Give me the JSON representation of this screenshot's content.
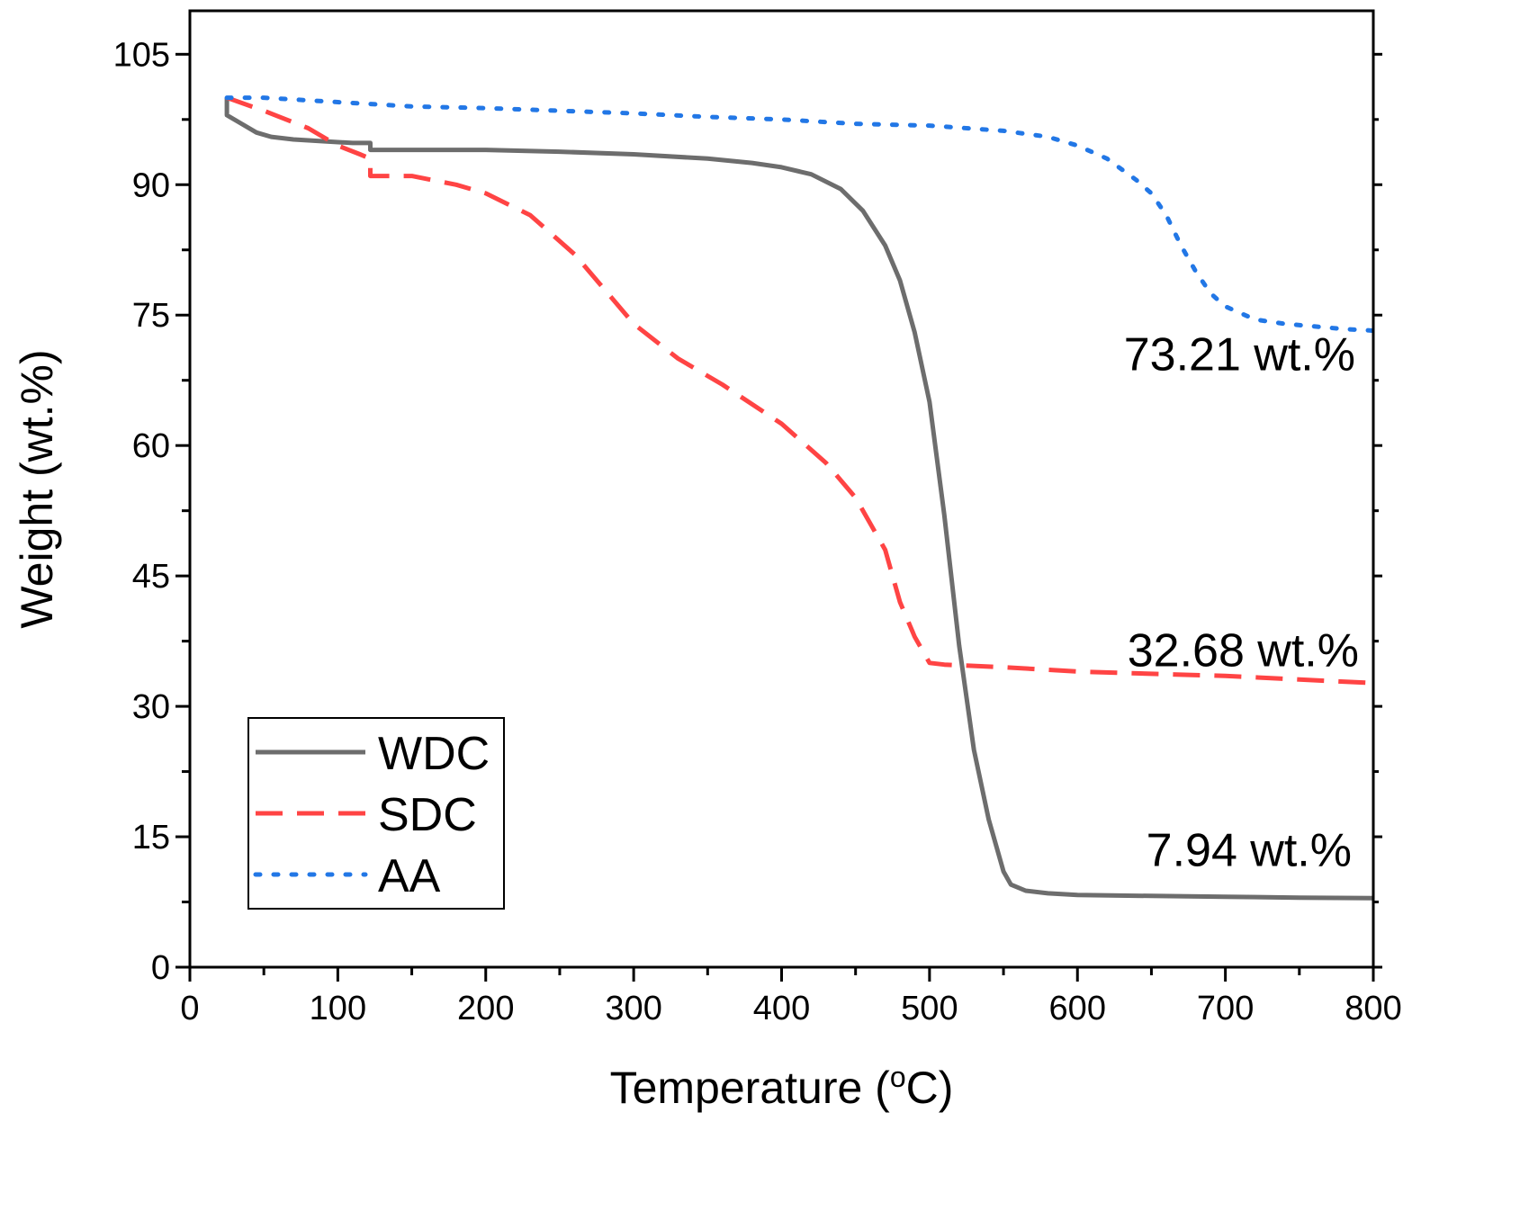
{
  "chart_data": {
    "type": "line",
    "title": "",
    "xlabel": "Temperature (",
    "xlabel_sup": "o",
    "xlabel_tail": "C)",
    "ylabel": "Weight (wt.%)",
    "xlim": [
      0,
      800
    ],
    "ylim": [
      0,
      110
    ],
    "xticks": [
      0,
      100,
      200,
      300,
      400,
      500,
      600,
      700,
      800
    ],
    "yticks": [
      0,
      15,
      30,
      45,
      60,
      75,
      90,
      105
    ],
    "grid": false,
    "legend_position": "bottom-left",
    "series": [
      {
        "name": "WDC",
        "color": "#6d6d6d",
        "style": "solid",
        "x": [
          25,
          25,
          35,
          45,
          55,
          70,
          90,
          110,
          122,
          122,
          150,
          200,
          250,
          300,
          350,
          380,
          400,
          420,
          440,
          455,
          470,
          480,
          490,
          500,
          510,
          520,
          530,
          540,
          550,
          555,
          565,
          580,
          600,
          650,
          700,
          750,
          800
        ],
        "y": [
          100,
          98,
          97,
          96,
          95.5,
          95.2,
          95,
          94.8,
          94.8,
          94,
          94,
          94,
          93.8,
          93.5,
          93,
          92.5,
          92,
          91.2,
          89.5,
          87,
          83,
          79,
          73,
          65,
          52,
          37,
          25,
          17,
          11,
          9.5,
          8.8,
          8.5,
          8.3,
          8.2,
          8.1,
          8.0,
          7.94
        ]
      },
      {
        "name": "SDC",
        "color": "#ff4444",
        "style": "dashed",
        "x": [
          25,
          50,
          80,
          100,
          115,
          122,
          122,
          150,
          180,
          200,
          230,
          260,
          280,
          300,
          330,
          360,
          400,
          430,
          450,
          470,
          480,
          490,
          500,
          510,
          550,
          600,
          700,
          800
        ],
        "y": [
          100,
          98.5,
          96.5,
          94.5,
          93.5,
          93,
          91,
          91,
          90,
          89,
          86.5,
          82,
          78,
          74,
          70,
          67,
          62.5,
          58,
          54,
          48,
          42,
          38,
          35,
          34.8,
          34.5,
          34.0,
          33.5,
          32.68
        ]
      },
      {
        "name": "AA",
        "color": "#2277e6",
        "style": "dotted",
        "x": [
          25,
          50,
          100,
          150,
          200,
          250,
          300,
          350,
          400,
          450,
          500,
          550,
          580,
          600,
          620,
          640,
          650,
          660,
          670,
          680,
          690,
          700,
          720,
          740,
          760,
          780,
          800
        ],
        "y": [
          100,
          100,
          99.5,
          99.0,
          98.8,
          98.5,
          98.2,
          97.8,
          97.5,
          97.0,
          96.8,
          96.2,
          95.5,
          94.5,
          93,
          90.5,
          89,
          86.5,
          83,
          80,
          77.5,
          76,
          74.5,
          74,
          73.7,
          73.4,
          73.21
        ]
      }
    ],
    "annotations": [
      {
        "text": "73.21 wt.%",
        "x": 800,
        "y": 73.21,
        "anchor": "end"
      },
      {
        "text": "32.68 wt.%",
        "x": 800,
        "y": 32.68,
        "anchor": "end"
      },
      {
        "text": "7.94 wt.%",
        "x": 800,
        "y": 7.94,
        "anchor": "end"
      }
    ]
  }
}
